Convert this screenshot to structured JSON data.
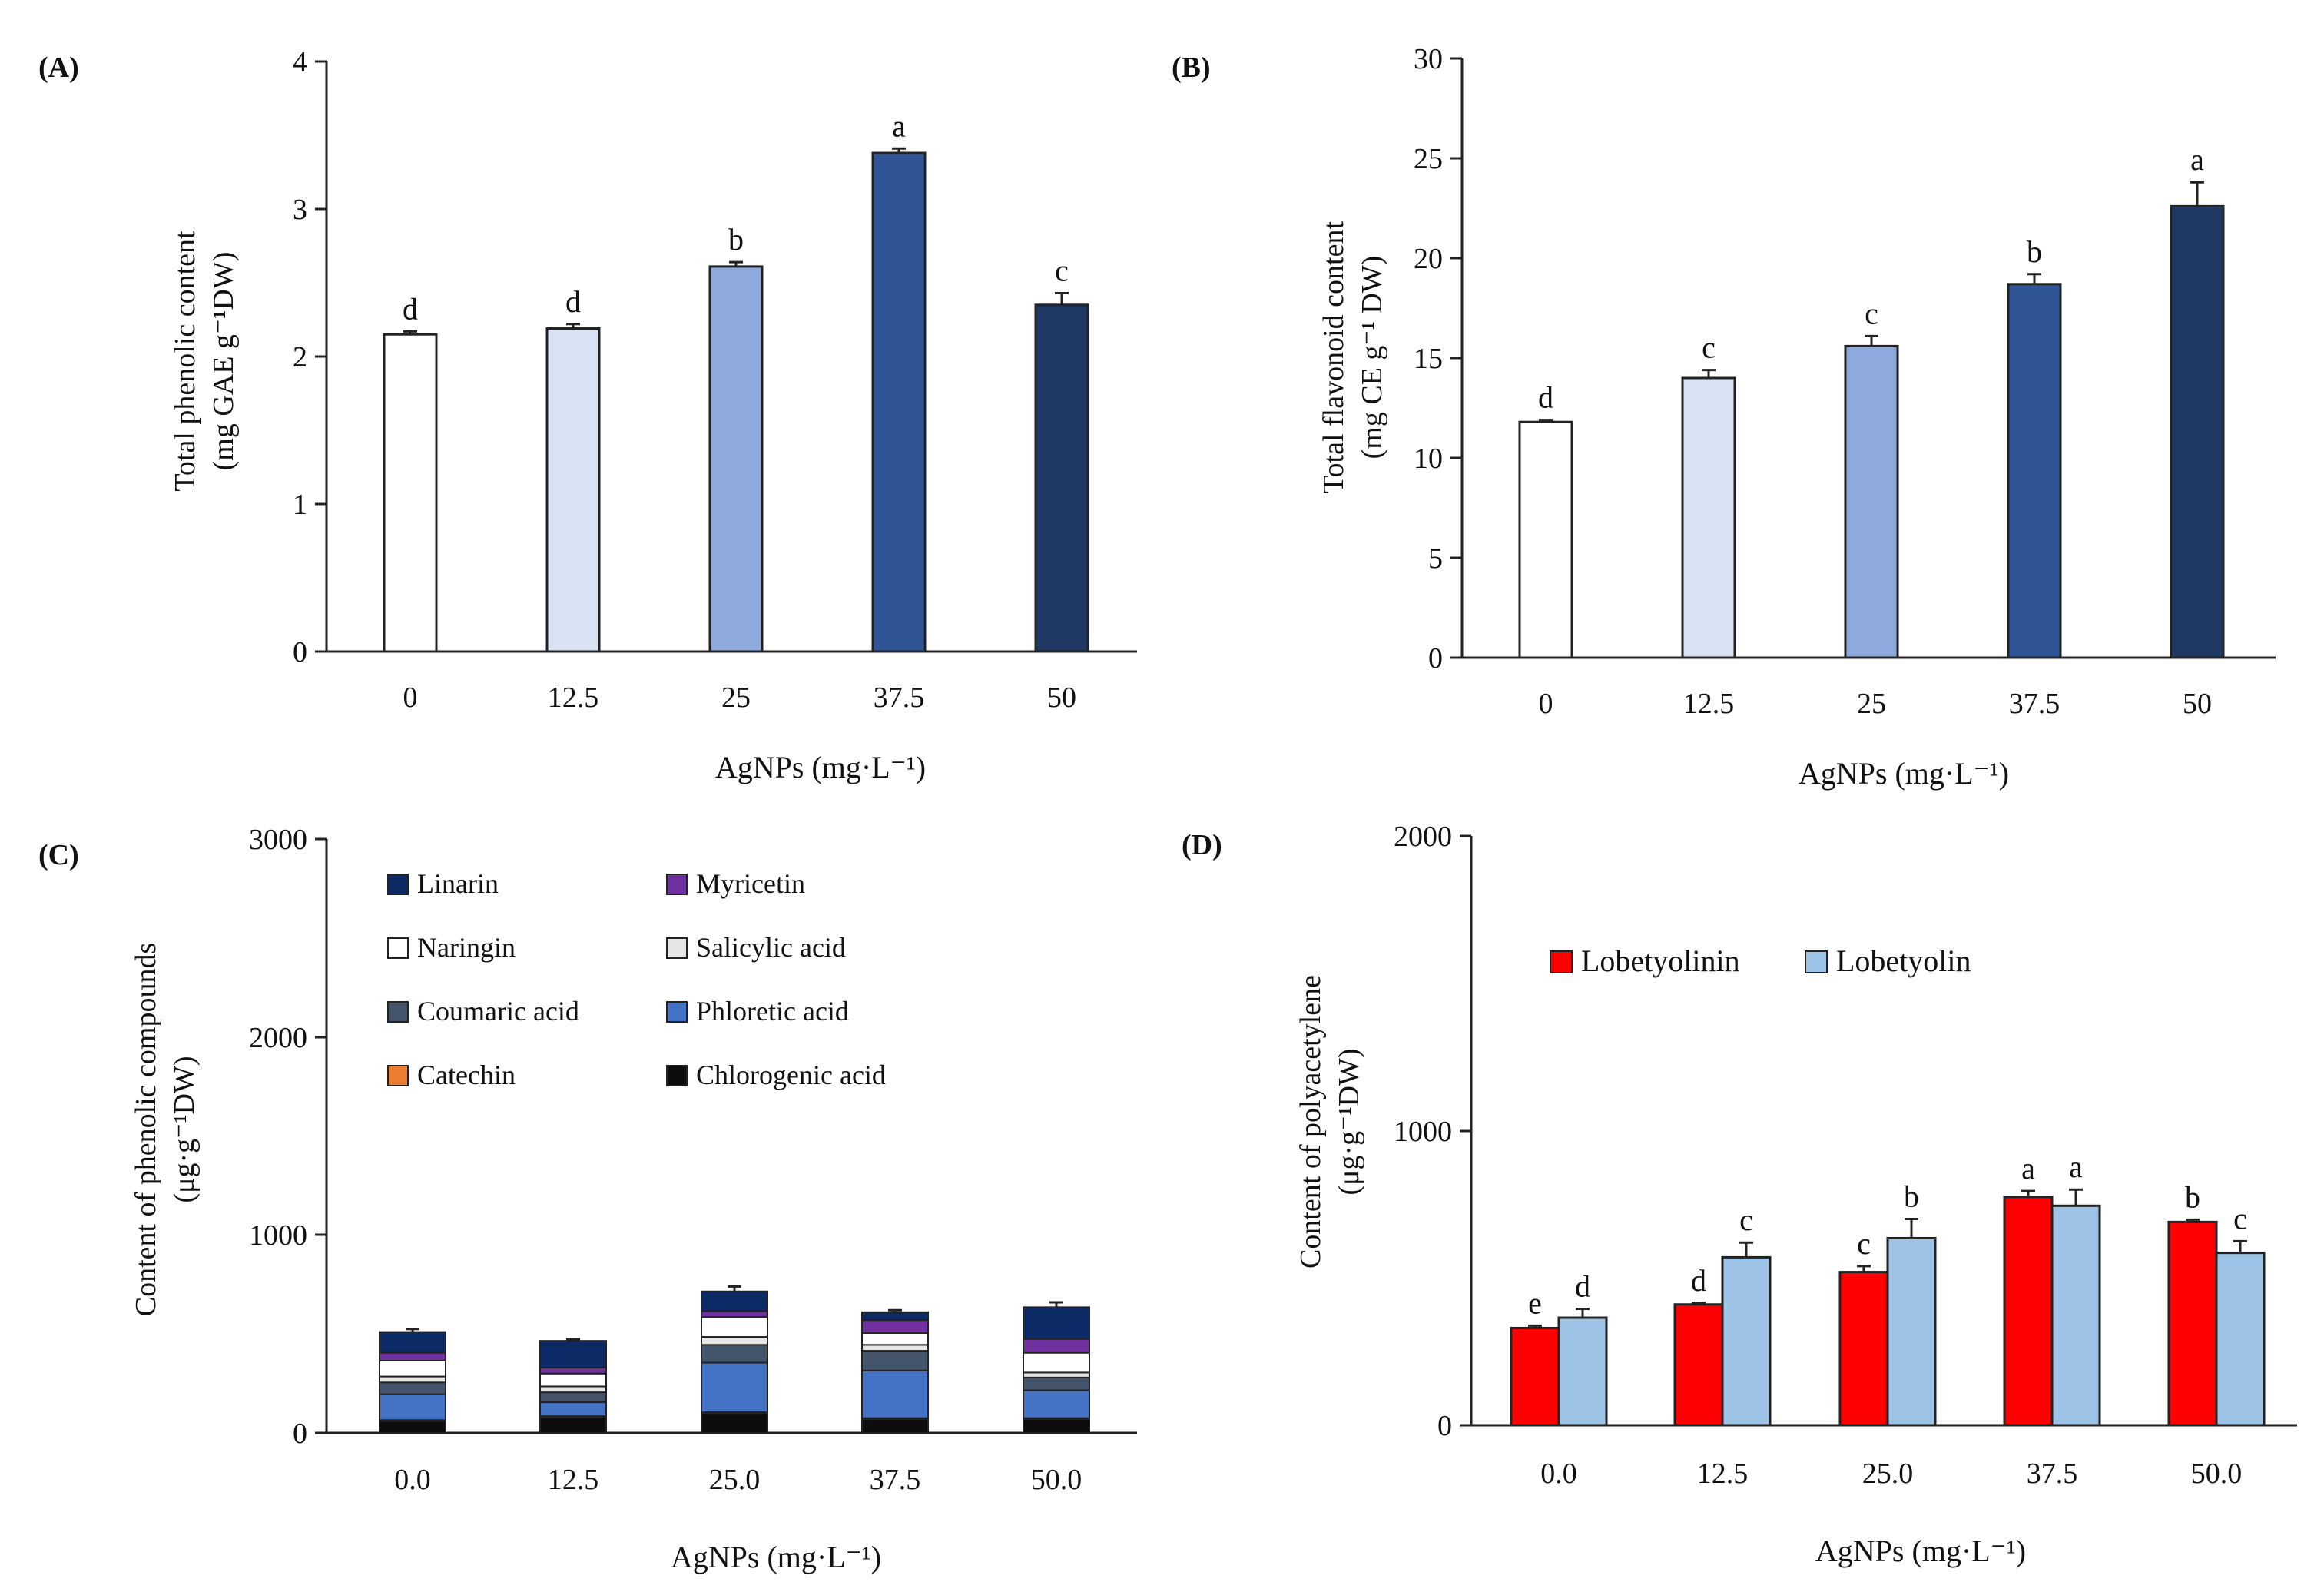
{
  "colors": {
    "axis": "#222222",
    "bars_ab": [
      "#ffffff",
      "#dae3f3",
      "#8eaadc",
      "#2f5597",
      "#1f3864"
    ],
    "linarin": "#0c2a66",
    "myricetin": "#7030a0",
    "naringin": "#ffffff",
    "salicylic": "#e7e6e6",
    "coumaric": "#44546a",
    "phloretic": "#4472c4",
    "catechin": "#ed7d31",
    "chlorogenic": "#0d0d0d",
    "lobetyolinin": "#ff0000",
    "lobetyolin": "#9dc3e6"
  },
  "chart_data": [
    {
      "id": "A",
      "panel_label": "(A)",
      "type": "bar",
      "xlabel": "AgNPs (mg·L⁻¹)",
      "ylabel_line1": "Total phenolic content",
      "ylabel_line2": "(mg GAE g⁻¹DW)",
      "categories": [
        "0",
        "12.5",
        "25",
        "37.5",
        "50"
      ],
      "values": [
        2.15,
        2.19,
        2.61,
        3.38,
        2.35
      ],
      "errors": [
        0.02,
        0.03,
        0.03,
        0.03,
        0.08
      ],
      "letters": [
        "d",
        "d",
        "b",
        "a",
        "c"
      ],
      "ylim": [
        0,
        4
      ],
      "yticks": [
        "0",
        "1",
        "2",
        "3",
        "4"
      ]
    },
    {
      "id": "B",
      "panel_label": "(B)",
      "type": "bar",
      "xlabel": "AgNPs (mg·L⁻¹)",
      "ylabel_line1": "Total flavonoid content",
      "ylabel_line2": "(mg CE g⁻¹ DW)",
      "categories": [
        "0",
        "12.5",
        "25",
        "37.5",
        "50"
      ],
      "values": [
        11.8,
        14.0,
        15.6,
        18.7,
        22.6
      ],
      "errors": [
        0.1,
        0.4,
        0.5,
        0.5,
        1.2
      ],
      "letters": [
        "d",
        "c",
        "c",
        "b",
        "a"
      ],
      "ylim": [
        0,
        30
      ],
      "yticks": [
        "0",
        "5",
        "10",
        "15",
        "20",
        "25",
        "30"
      ]
    },
    {
      "id": "C",
      "panel_label": "(C)",
      "type": "stacked_bar",
      "xlabel": "AgNPs (mg·L⁻¹)",
      "ylabel_line1": "Content of phenolic compounds",
      "ylabel_line2": "(μg·g⁻¹DW)",
      "categories": [
        "0.0",
        "12.5",
        "25.0",
        "37.5",
        "50.0"
      ],
      "ylim": [
        0,
        3000
      ],
      "yticks": [
        "0",
        "1000",
        "2000",
        "3000"
      ],
      "legend_order": [
        "Linarin",
        "Myricetin",
        "Naringin",
        "Salicylic acid",
        "Coumaric acid",
        "Phloretic acid",
        "Catechin",
        "Chlorogenic acid"
      ],
      "series": [
        {
          "name": "Chlorogenic acid",
          "color_key": "chlorogenic",
          "values": [
            60,
            80,
            100,
            70,
            70
          ]
        },
        {
          "name": "Catechin",
          "color_key": "catechin",
          "values": [
            5,
            5,
            5,
            5,
            5
          ]
        },
        {
          "name": "Phloretic acid",
          "color_key": "phloretic",
          "values": [
            130,
            70,
            250,
            240,
            140
          ]
        },
        {
          "name": "Coumaric acid",
          "color_key": "coumaric",
          "values": [
            60,
            50,
            90,
            100,
            65
          ]
        },
        {
          "name": "Salicylic acid",
          "color_key": "salicylic",
          "values": [
            30,
            30,
            40,
            30,
            25
          ]
        },
        {
          "name": "Naringin",
          "color_key": "naringin",
          "values": [
            80,
            65,
            100,
            60,
            100
          ]
        },
        {
          "name": "Myricetin",
          "color_key": "myricetin",
          "values": [
            40,
            30,
            30,
            65,
            70
          ]
        },
        {
          "name": "Linarin",
          "color_key": "linarin",
          "values": [
            105,
            135,
            100,
            40,
            160
          ]
        }
      ],
      "total_errors": [
        15,
        8,
        25,
        10,
        25
      ]
    },
    {
      "id": "D",
      "panel_label": "(D)",
      "type": "grouped_bar",
      "xlabel": "AgNPs (mg·L⁻¹)",
      "ylabel_line1": "Content of polyacetylene",
      "ylabel_line2": "(μg·g⁻¹DW)",
      "categories": [
        "0.0",
        "12.5",
        "25.0",
        "37.5",
        "50.0"
      ],
      "ylim": [
        0,
        2000
      ],
      "yticks": [
        "0",
        "1000",
        "2000"
      ],
      "series": [
        {
          "name": "Lobetyolinin",
          "color_key": "lobetyolinin",
          "values": [
            330,
            410,
            520,
            775,
            690
          ],
          "errors": [
            8,
            5,
            20,
            20,
            8
          ],
          "letters": [
            "e",
            "d",
            "c",
            "a",
            "b"
          ]
        },
        {
          "name": "Lobetyolin",
          "color_key": "lobetyolin",
          "values": [
            365,
            570,
            635,
            745,
            585
          ],
          "errors": [
            30,
            50,
            65,
            55,
            40
          ],
          "letters": [
            "d",
            "c",
            "b",
            "a",
            "c"
          ]
        }
      ]
    }
  ]
}
